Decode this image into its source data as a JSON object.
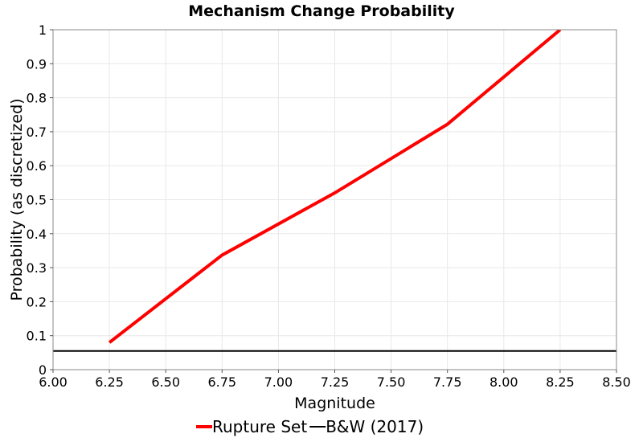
{
  "chart_data": {
    "type": "line",
    "title": "Mechanism Change Probability",
    "xlabel": "Magnitude",
    "ylabel": "Probability (as discretized)",
    "xlim": [
      6.0,
      8.5
    ],
    "ylim": [
      0,
      1
    ],
    "grid": true,
    "legend_position": "bottom",
    "x_ticks": [
      "6.00",
      "6.25",
      "6.50",
      "6.75",
      "7.00",
      "7.25",
      "7.50",
      "7.75",
      "8.00",
      "8.25",
      "8.50"
    ],
    "y_ticks": [
      "0",
      "0.1",
      "0.2",
      "0.3",
      "0.4",
      "0.5",
      "0.6",
      "0.7",
      "0.8",
      "0.9",
      "1"
    ],
    "series": [
      {
        "name": "Rupture Set",
        "color": "#ff0000",
        "x": [
          6.25,
          6.75,
          7.25,
          7.75,
          8.25
        ],
        "y": [
          0.08,
          0.337,
          0.52,
          0.722,
          1.0
        ]
      },
      {
        "name": "B&W (2017)",
        "color": "#000000",
        "x": [
          6.0,
          8.5
        ],
        "y": [
          0.055,
          0.055
        ]
      }
    ]
  }
}
